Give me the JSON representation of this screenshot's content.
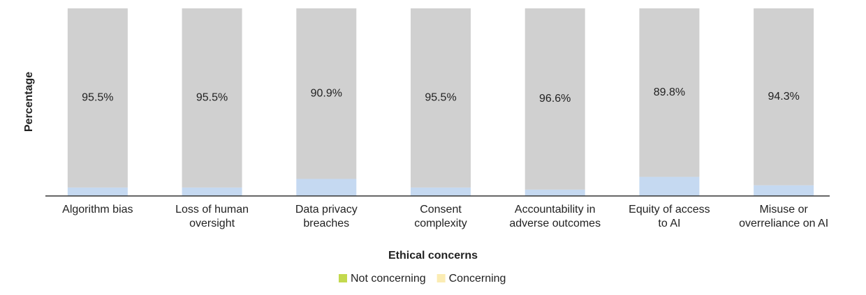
{
  "chart_data": {
    "type": "stacked_bar",
    "x_label": "Ethical concerns",
    "y_label": "Percentage",
    "categories": [
      "Algorithm bias",
      "Loss of human\noversight",
      "Data privacy\nbreaches",
      "Consent\ncomplexity",
      "Accountability in\nadverse outcomes",
      "Equity of access\nto AI",
      "Misuse or\noverreliance on AI"
    ],
    "series": [
      {
        "name": "Not concerning",
        "color": "#c5d9f1",
        "legend_color": "#c3d94e",
        "values": [
          4.5,
          4.5,
          9.1,
          4.5,
          3.4,
          10.2,
          5.7
        ]
      },
      {
        "name": "Concerning",
        "color": "#d0d0d0",
        "legend_color": "#fbecb3",
        "values": [
          95.5,
          95.5,
          90.9,
          95.5,
          96.6,
          89.8,
          94.3
        ],
        "value_labels": [
          "95.5%",
          "95.5%",
          "90.9%",
          "95.5%",
          "96.6%",
          "89.8%",
          "94.3%"
        ]
      }
    ],
    "ylim": [
      0,
      100
    ],
    "legend": "bottom"
  }
}
